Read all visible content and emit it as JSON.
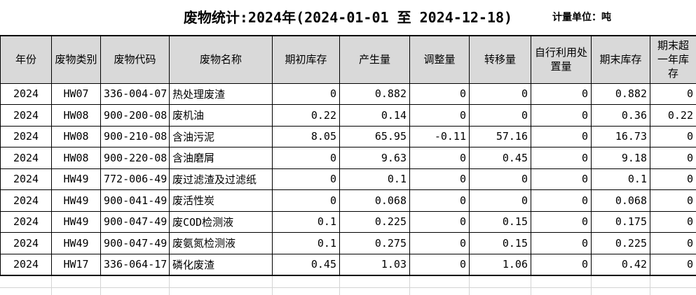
{
  "header": {
    "title": "废物统计:2024年(2024-01-01 至 2024-12-18)",
    "unit_label": "计量单位：吨"
  },
  "colors": {
    "header_bg": "#d9d9d9",
    "table_border": "#000000",
    "ghost_grid_line": "#d4d4d4",
    "text": "#000000",
    "background": "#ffffff"
  },
  "table": {
    "columns": [
      {
        "label": "年份"
      },
      {
        "label": "废物类别"
      },
      {
        "label": "废物代码"
      },
      {
        "label": "废物名称"
      },
      {
        "label": "期初库存"
      },
      {
        "label": "产生量"
      },
      {
        "label": "调整量"
      },
      {
        "label": "转移量"
      },
      {
        "label": "自行利用处置量"
      },
      {
        "label": "期末库存"
      },
      {
        "label": "期末超一年库存"
      }
    ],
    "rows": [
      {
        "cells": [
          "2024",
          "HW07",
          "336-004-07",
          "热处理废渣",
          "0",
          "0.882",
          "0",
          "0",
          "0",
          "0.882",
          "0"
        ]
      },
      {
        "cells": [
          "2024",
          "HW08",
          "900-200-08",
          "废机油",
          "0.22",
          "0.14",
          "0",
          "0",
          "0",
          "0.36",
          "0.22"
        ]
      },
      {
        "cells": [
          "2024",
          "HW08",
          "900-210-08",
          "含油污泥",
          "8.05",
          "65.95",
          "-0.11",
          "57.16",
          "0",
          "16.73",
          "0"
        ]
      },
      {
        "cells": [
          "2024",
          "HW08",
          "900-220-08",
          "含油磨屑",
          "0",
          "9.63",
          "0",
          "0.45",
          "0",
          "9.18",
          "0"
        ]
      },
      {
        "cells": [
          "2024",
          "HW49",
          "772-006-49",
          "废过滤渣及过滤纸",
          "0",
          "0.1",
          "0",
          "0",
          "0",
          "0.1",
          "0"
        ]
      },
      {
        "cells": [
          "2024",
          "HW49",
          "900-041-49",
          "废活性炭",
          "0",
          "0.068",
          "0",
          "0",
          "0",
          "0.068",
          "0"
        ]
      },
      {
        "cells": [
          "2024",
          "HW49",
          "900-047-49",
          "废COD检测液",
          "0.1",
          "0.225",
          "0",
          "0.15",
          "0",
          "0.175",
          "0"
        ]
      },
      {
        "cells": [
          "2024",
          "HW49",
          "900-047-49",
          "废氨氮检测液",
          "0.1",
          "0.275",
          "0",
          "0.15",
          "0",
          "0.225",
          "0"
        ]
      },
      {
        "cells": [
          "2024",
          "HW17",
          "336-064-17",
          "磷化废渣",
          "0.45",
          "1.03",
          "0",
          "1.06",
          "0",
          "0.42",
          "0"
        ]
      }
    ]
  }
}
